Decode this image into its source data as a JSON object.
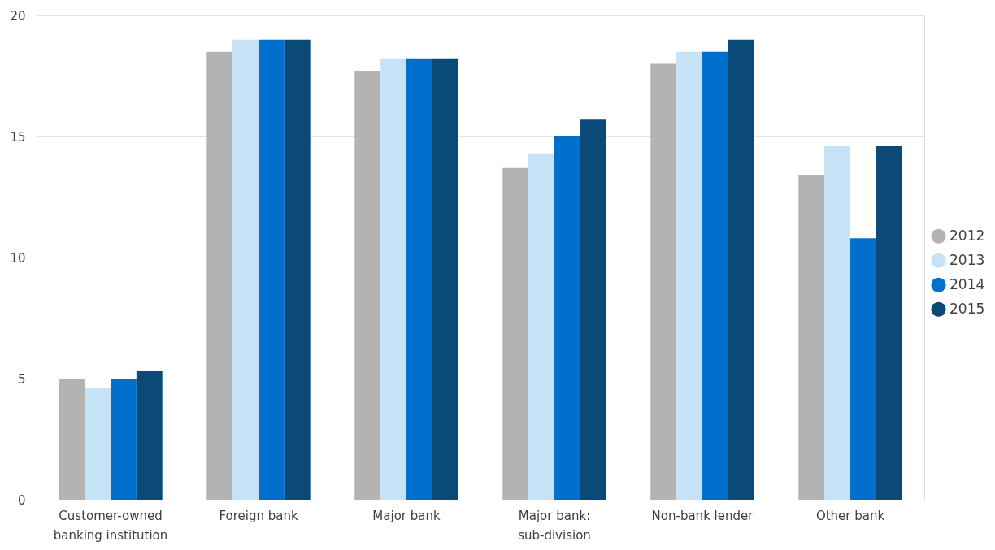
{
  "chart_data": {
    "type": "bar",
    "categories": [
      "Customer-owned banking institution",
      "Foreign bank",
      "Major bank",
      "Major bank: sub-division",
      "Non-bank lender",
      "Other bank"
    ],
    "series": [
      {
        "name": "2012",
        "color": "#b3b3b3",
        "values": [
          5.0,
          18.5,
          17.7,
          13.7,
          18.0,
          13.4
        ]
      },
      {
        "name": "2013",
        "color": "#c5e2f7",
        "values": [
          4.6,
          19.0,
          18.2,
          14.3,
          18.5,
          14.6
        ]
      },
      {
        "name": "2014",
        "color": "#0070cc",
        "values": [
          5.0,
          19.0,
          18.2,
          15.0,
          18.5,
          10.8
        ]
      },
      {
        "name": "2015",
        "color": "#0b4977",
        "values": [
          5.3,
          19.0,
          18.2,
          15.7,
          19.0,
          14.6
        ]
      }
    ],
    "ylim": [
      0,
      20
    ],
    "yticks": [
      0,
      5,
      10,
      15,
      20
    ],
    "grid": "y",
    "legend": "right"
  }
}
